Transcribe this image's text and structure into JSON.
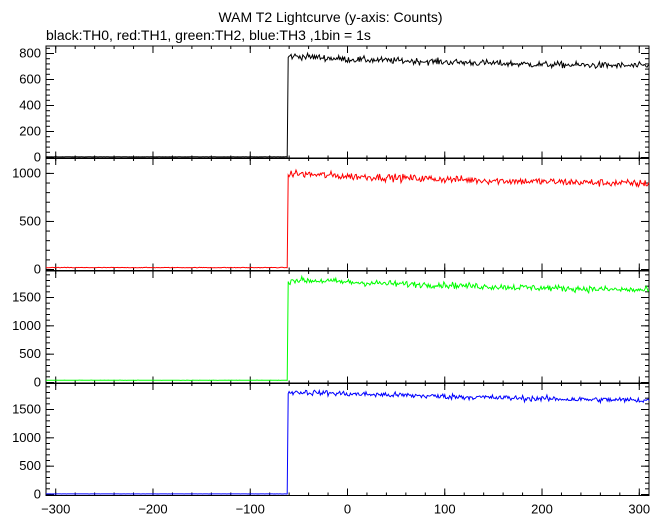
{
  "chart_data": {
    "type": "line",
    "title": "WAM T2 Lightcurve (y-axis: Counts)",
    "subtitle": "black:TH0, red:TH1, green:TH2, blue:TH3 ,1bin = 1s",
    "xlim": [
      -310,
      310
    ],
    "x_ticks": [
      -300,
      -200,
      -100,
      0,
      100,
      200,
      300
    ],
    "x_tick_labels": [
      "−300",
      "−200",
      "−100",
      "0",
      "100",
      "200",
      "300"
    ],
    "grid": false,
    "panels": [
      {
        "series": "TH0",
        "color": "#000000",
        "ylim": [
          0,
          850
        ],
        "y_ticks": [
          0,
          200,
          400,
          600,
          800
        ],
        "y_tick_labels": [
          "0",
          "200",
          "400",
          "600",
          "800"
        ],
        "x": [
          -310,
          -62,
          -61,
          -58,
          -40,
          -20,
          0,
          50,
          100,
          150,
          200,
          250,
          300,
          310
        ],
        "y": [
          5,
          5,
          770,
          780,
          775,
          765,
          755,
          745,
          735,
          725,
          715,
          710,
          705,
          705
        ],
        "noise": 18
      },
      {
        "series": "TH1",
        "color": "#ff0000",
        "ylim": [
          0,
          1150
        ],
        "y_ticks": [
          0,
          500,
          1000
        ],
        "y_tick_labels": [
          "0",
          "500",
          "1000"
        ],
        "x": [
          -310,
          -62,
          -61,
          -58,
          -40,
          -20,
          0,
          50,
          100,
          150,
          200,
          250,
          300,
          310
        ],
        "y": [
          20,
          20,
          980,
          1000,
          990,
          980,
          970,
          955,
          940,
          925,
          915,
          905,
          895,
          895
        ],
        "noise": 28
      },
      {
        "series": "TH2",
        "color": "#00ff00",
        "ylim": [
          0,
          1950
        ],
        "y_ticks": [
          0,
          500,
          1000,
          1500
        ],
        "y_tick_labels": [
          "0",
          "500",
          "1000",
          "1500"
        ],
        "x": [
          -310,
          -62,
          -61,
          -58,
          -40,
          -20,
          0,
          50,
          100,
          150,
          200,
          250,
          300,
          310
        ],
        "y": [
          40,
          40,
          1780,
          1810,
          1800,
          1790,
          1770,
          1740,
          1720,
          1690,
          1670,
          1650,
          1630,
          1630
        ],
        "noise": 40
      },
      {
        "series": "TH3",
        "color": "#0000ff",
        "ylim": [
          0,
          1950
        ],
        "y_ticks": [
          0,
          500,
          1000,
          1500
        ],
        "y_tick_labels": [
          "0",
          "500",
          "1000",
          "1500"
        ],
        "x": [
          -310,
          -62,
          -61,
          -58,
          -40,
          -20,
          0,
          50,
          100,
          150,
          200,
          250,
          300,
          310
        ],
        "y": [
          10,
          10,
          1780,
          1810,
          1800,
          1790,
          1775,
          1755,
          1730,
          1710,
          1690,
          1675,
          1665,
          1665
        ],
        "noise": 35
      }
    ]
  }
}
